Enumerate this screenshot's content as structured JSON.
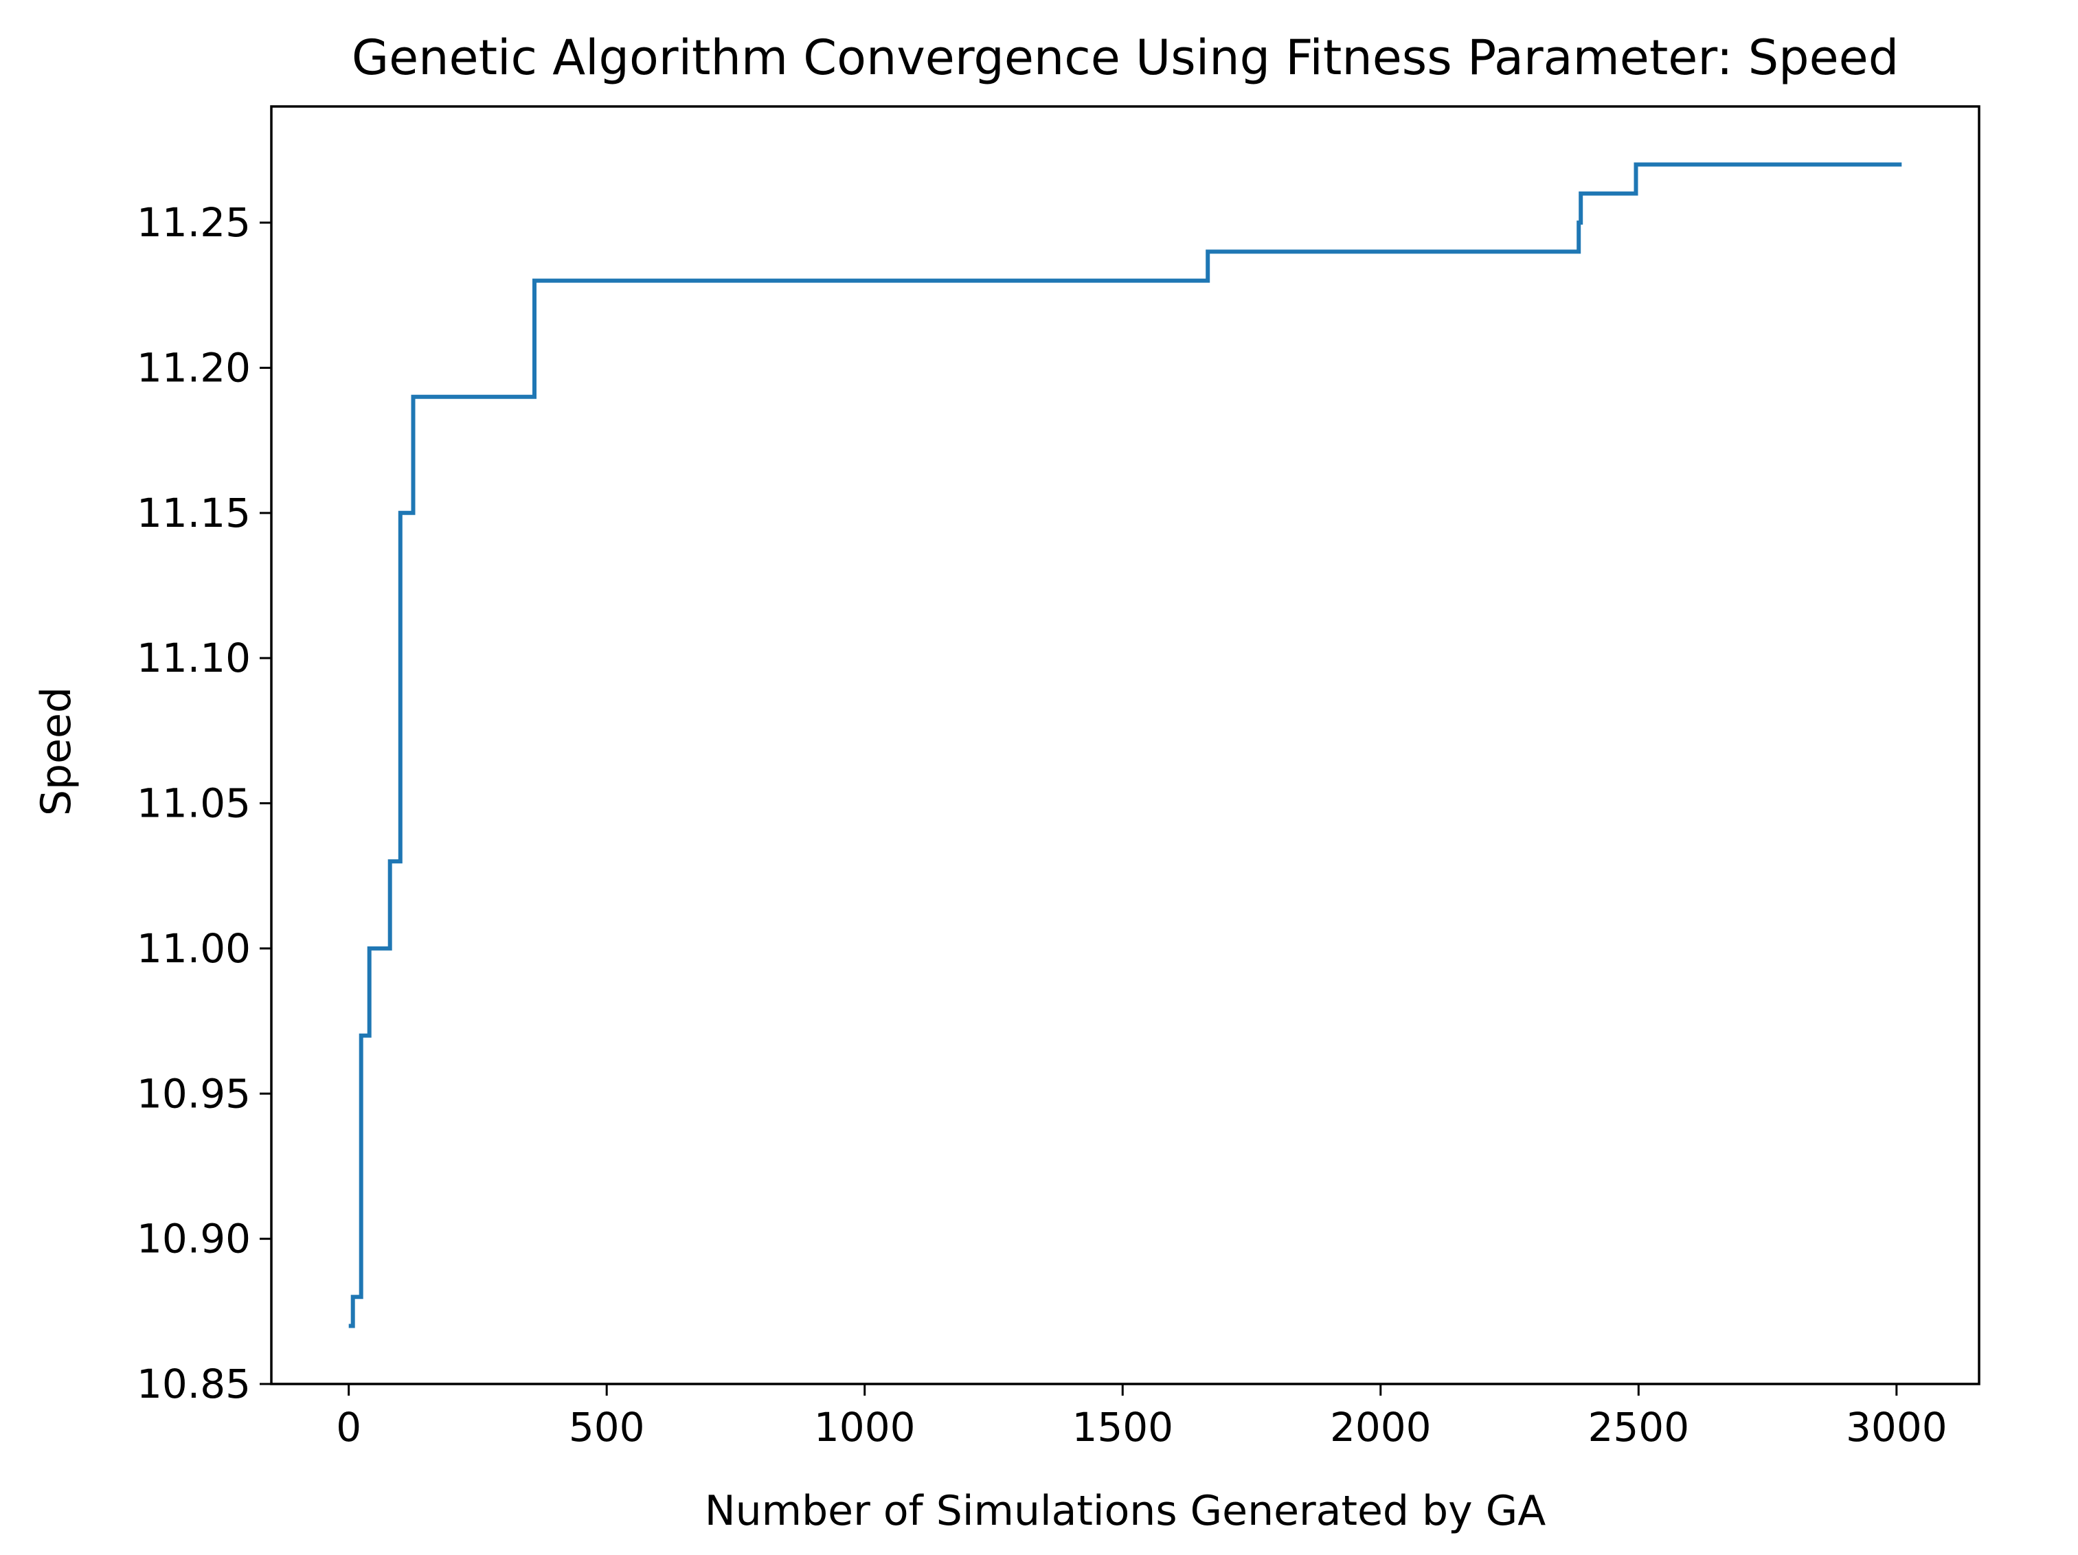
{
  "chart_data": {
    "type": "line",
    "title": "Genetic Algorithm Convergence Using Fitness Parameter: Speed",
    "xlabel": "Number of Simulations Generated by GA",
    "ylabel": "Speed",
    "xlim": [
      -150,
      3160
    ],
    "ylim": [
      10.85,
      11.29
    ],
    "xticks": [
      0,
      500,
      1000,
      1500,
      2000,
      2500,
      3000
    ],
    "yticks": [
      10.85,
      10.9,
      10.95,
      11.0,
      11.05,
      11.1,
      11.15,
      11.2,
      11.25
    ],
    "xtick_labels": [
      "0",
      "500",
      "1000",
      "1500",
      "2000",
      "2500",
      "3000"
    ],
    "ytick_labels": [
      "10.85",
      "10.90",
      "10.95",
      "11.00",
      "11.05",
      "11.10",
      "11.15",
      "11.20",
      "11.25"
    ],
    "grid": false,
    "legend": "none",
    "line_color": "#1f77b4",
    "series": [
      {
        "step": "post",
        "x": [
          0,
          8,
          20,
          24,
          36,
          40,
          75,
          80,
          95,
          100,
          115,
          125,
          355,
          360,
          1660,
          1665,
          2380,
          2384,
          2385,
          2388,
          2490,
          2495,
          3010
        ],
        "y": [
          10.87,
          10.88,
          10.88,
          10.97,
          10.97,
          11.0,
          11.0,
          11.03,
          11.03,
          11.15,
          11.15,
          11.19,
          11.19,
          11.23,
          11.23,
          11.24,
          11.24,
          11.25,
          11.25,
          11.26,
          11.26,
          11.27,
          11.27
        ]
      }
    ]
  }
}
